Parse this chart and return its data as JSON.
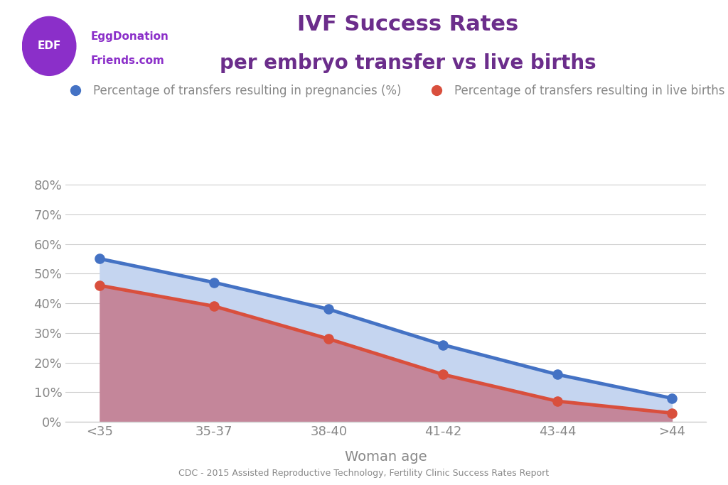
{
  "categories": [
    "<35",
    "35-37",
    "38-40",
    "41-42",
    "43-44",
    ">44"
  ],
  "pregnancies": [
    55,
    47,
    38,
    26,
    16,
    8
  ],
  "live_births": [
    46,
    39,
    28,
    16,
    7,
    3
  ],
  "title_line1": "IVF Success Rates",
  "title_line2": "per embryo transfer vs live births",
  "xlabel": "Woman age",
  "source": "CDC - 2015 Assisted Reproductive Technology, Fertility Clinic Success Rates Report",
  "legend_pregnancies": "Percentage of transfers resulting in pregnancies (%)",
  "legend_live_births": "Percentage of transfers resulting in live births (%)",
  "blue_line_color": "#4472C4",
  "blue_fill_color": "#C5D5F0",
  "red_line_color": "#D94F3D",
  "red_fill_color": "#C4869A",
  "title_color": "#6B2D8B",
  "axis_label_color": "#888888",
  "tick_color": "#888888",
  "grid_color": "#CCCCCC",
  "background_color": "#FFFFFF",
  "ylim": [
    0,
    85
  ],
  "yticks": [
    0,
    10,
    20,
    30,
    40,
    50,
    60,
    70,
    80
  ],
  "logo_text": "EDF",
  "logo_bg": "#8B2FC9",
  "brand_name_color": "#8B2FC9",
  "edf_text_color": "#FFFFFF"
}
